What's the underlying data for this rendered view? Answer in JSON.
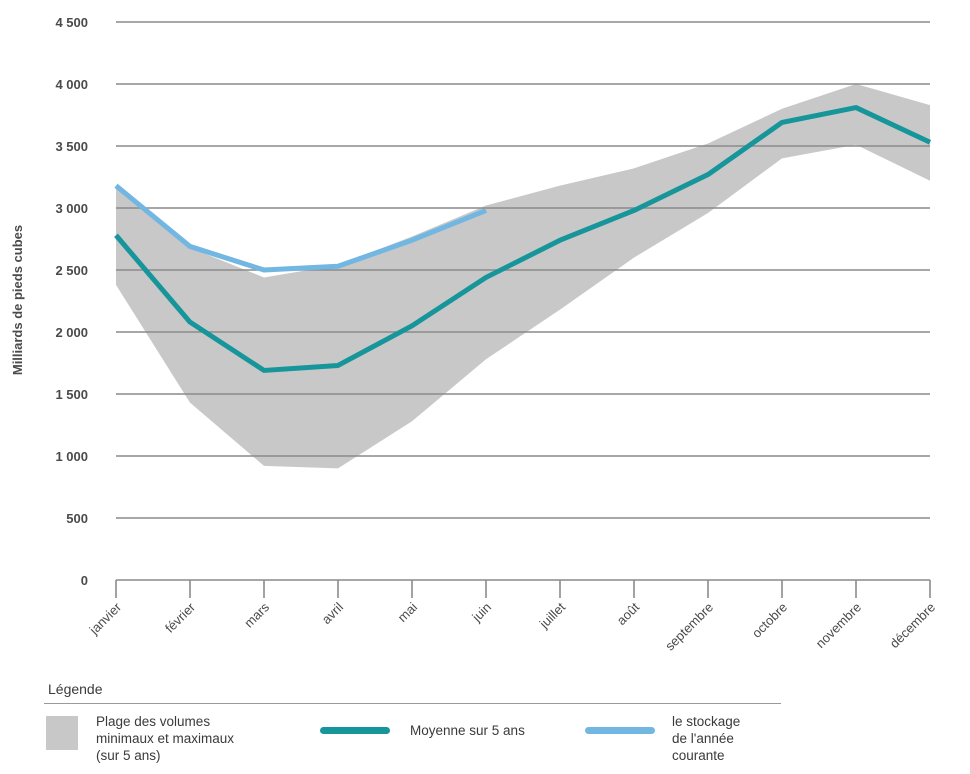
{
  "colors": {
    "band": "#c8c8c8",
    "average": "#16959b",
    "current": "#72b6e2",
    "grid": "#8a8a8a",
    "axis": "#8a8a8a"
  },
  "legend": {
    "title": "Légende",
    "band_label": [
      "Plage des volumes",
      "minimaux et maximaux",
      "(sur 5 ans)"
    ],
    "average_label": "Moyenne sur 5 ans",
    "current_label": [
      "le stockage",
      "de l'année",
      "courante"
    ]
  },
  "chart_data": {
    "type": "line",
    "title": "",
    "xlabel": "",
    "ylabel": "Milliards de pieds cubes",
    "ylim": [
      0,
      4500
    ],
    "yticks": [
      0,
      500,
      1000,
      1500,
      2000,
      2500,
      3000,
      3500,
      4000,
      4500
    ],
    "ytick_labels": [
      "0",
      "500",
      "1 000",
      "1 500",
      "2 000",
      "2 500",
      "3 000",
      "3 500",
      "4 000",
      "4 500"
    ],
    "categories": [
      "janvier",
      "février",
      "mars",
      "avril",
      "mai",
      "juin",
      "juillet",
      "août",
      "septembre",
      "octobre",
      "novembre",
      "décembre"
    ],
    "grid": true,
    "legend_position": "bottom",
    "band": {
      "name": "Plage des volumes minimaux et maximaux (sur 5 ans)",
      "min": [
        2380,
        1430,
        920,
        900,
        1280,
        1780,
        2180,
        2600,
        2960,
        3400,
        3510,
        3220
      ],
      "max": [
        3170,
        2680,
        2440,
        2540,
        2770,
        3020,
        3180,
        3320,
        3520,
        3800,
        4000,
        3830
      ]
    },
    "series": [
      {
        "name": "Moyenne sur 5 ans",
        "values": [
          2780,
          2080,
          1690,
          1730,
          2050,
          2440,
          2740,
          2980,
          3270,
          3690,
          3810,
          3530
        ]
      },
      {
        "name": "le stockage de l'année courante",
        "values": [
          3180,
          2690,
          2500,
          2530,
          2740,
          2980,
          null,
          null,
          null,
          null,
          null,
          null
        ]
      }
    ]
  }
}
